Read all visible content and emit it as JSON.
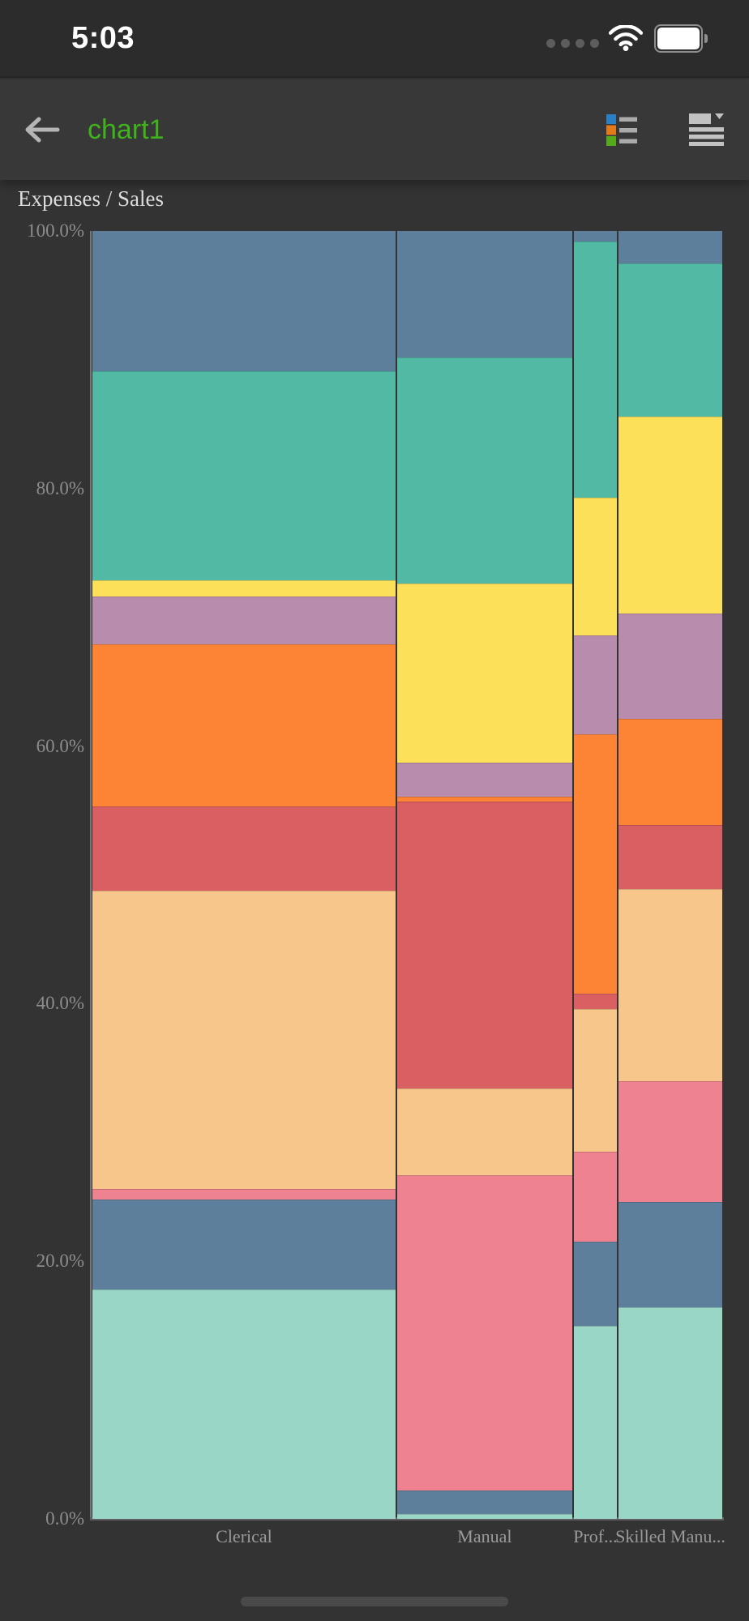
{
  "status_bar": {
    "time": "5:03"
  },
  "nav_bar": {
    "title": "chart1",
    "title_color": "#3FB31B",
    "icons": [
      "back-arrow",
      "legend",
      "view-menu"
    ]
  },
  "chart_data": {
    "type": "mosaic",
    "title": "Expenses / Sales",
    "y_axis": {
      "ticks": [
        "100.0%",
        "80.0%",
        "60.0%",
        "40.0%",
        "20.0%",
        "0.0%"
      ],
      "range": [
        0,
        100
      ],
      "unit": "%"
    },
    "palette_top_to_bottom": [
      "#5D7F9B",
      "#52B9A5",
      "#FDE05A",
      "#B78CAC",
      "#FD8434",
      "#DA5F62",
      "#F7C68A",
      "#EE8290",
      "#5D7F9B",
      "#9AD6C5"
    ],
    "columns": [
      {
        "label": "Clerical",
        "width_pct": 48.5,
        "values_pct_top_to_bottom": [
          10.9,
          16.2,
          1.3,
          3.7,
          12.6,
          6.5,
          23.2,
          0.8,
          7.0,
          17.8
        ]
      },
      {
        "label": "Manual",
        "width_pct": 28.0,
        "values_pct_top_to_bottom": [
          9.8,
          17.6,
          13.9,
          2.6,
          0.4,
          22.3,
          6.7,
          24.5,
          1.8,
          0.4
        ]
      },
      {
        "label": "Prof...",
        "width_pct": 6.9,
        "values_pct_top_to_bottom": [
          0.8,
          19.9,
          10.7,
          7.7,
          20.1,
          1.2,
          11.1,
          7.0,
          6.5,
          15.0
        ]
      },
      {
        "label": "Skilled Manu...",
        "width_pct": 16.6,
        "values_pct_top_to_bottom": [
          2.5,
          11.9,
          15.3,
          8.2,
          8.2,
          5.0,
          14.9,
          9.4,
          8.2,
          16.4
        ]
      }
    ]
  }
}
